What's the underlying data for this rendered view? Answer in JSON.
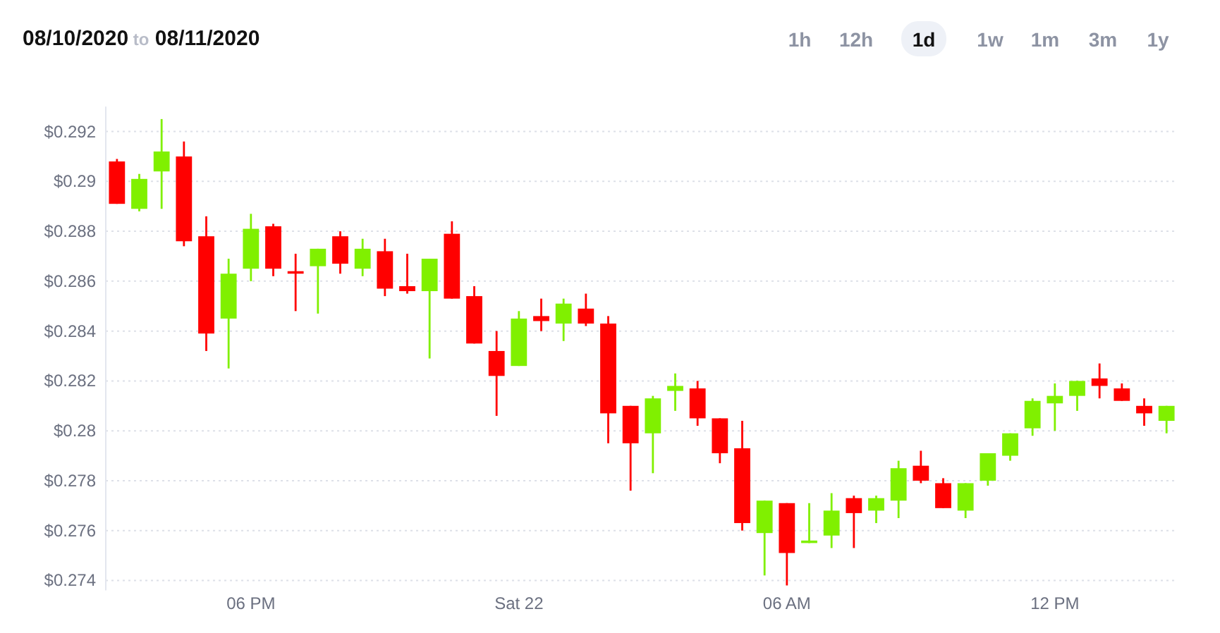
{
  "chart_data": {
    "type": "candlestick",
    "title": "08/10/2020 to 08/11/2020",
    "annotations": [
      "1h",
      "12h",
      "1d",
      "1w",
      "1m",
      "3m",
      "1y"
    ],
    "categories": [
      null,
      null,
      null,
      null,
      null,
      null,
      "06 PM",
      null,
      null,
      null,
      null,
      null,
      null,
      null,
      null,
      null,
      null,
      null,
      "Sat 22",
      null,
      null,
      null,
      null,
      null,
      null,
      null,
      null,
      null,
      null,
      null,
      "06 AM",
      null,
      null,
      null,
      null,
      null,
      null,
      null,
      null,
      null,
      null,
      null,
      "12 PM",
      null,
      null,
      null,
      null,
      null
    ],
    "ohlc": [
      [
        0.2908,
        0.2909,
        0.2891,
        0.2891
      ],
      [
        0.2889,
        0.2903,
        0.2888,
        0.2901
      ],
      [
        0.2904,
        0.2925,
        0.2889,
        0.2912
      ],
      [
        0.291,
        0.2916,
        0.2874,
        0.2876
      ],
      [
        0.2878,
        0.2886,
        0.2832,
        0.2839
      ],
      [
        0.2845,
        0.2869,
        0.2825,
        0.2863
      ],
      [
        0.2865,
        0.2887,
        0.286,
        0.2881
      ],
      [
        0.2882,
        0.2883,
        0.2862,
        0.2865
      ],
      [
        0.2864,
        0.2871,
        0.2848,
        0.2863
      ],
      [
        0.2866,
        0.2873,
        0.2847,
        0.2873
      ],
      [
        0.2878,
        0.288,
        0.2863,
        0.2867
      ],
      [
        0.2865,
        0.2877,
        0.2862,
        0.2873
      ],
      [
        0.2872,
        0.2877,
        0.2854,
        0.2857
      ],
      [
        0.2858,
        0.2871,
        0.2855,
        0.2856
      ],
      [
        0.2856,
        0.2869,
        0.2829,
        0.2869
      ],
      [
        0.2879,
        0.2884,
        0.2853,
        0.2853
      ],
      [
        0.2854,
        0.2858,
        0.2835,
        0.2835
      ],
      [
        0.2832,
        0.284,
        0.2806,
        0.2822
      ],
      [
        0.2826,
        0.2848,
        0.2826,
        0.2845
      ],
      [
        0.2846,
        0.2853,
        0.284,
        0.2844
      ],
      [
        0.2843,
        0.2853,
        0.2836,
        0.2851
      ],
      [
        0.2849,
        0.2855,
        0.2842,
        0.2843
      ],
      [
        0.2843,
        0.2846,
        0.2795,
        0.2807
      ],
      [
        0.281,
        0.281,
        0.2776,
        0.2795
      ],
      [
        0.2799,
        0.2814,
        0.2783,
        0.2813
      ],
      [
        0.2816,
        0.2823,
        0.2808,
        0.2818
      ],
      [
        0.2817,
        0.282,
        0.2802,
        0.2805
      ],
      [
        0.2805,
        0.2805,
        0.2787,
        0.2791
      ],
      [
        0.2793,
        0.2804,
        0.276,
        0.2763
      ],
      [
        0.2759,
        0.2772,
        0.2742,
        0.2772
      ],
      [
        0.2771,
        0.2771,
        0.2738,
        0.2751
      ],
      [
        0.2755,
        0.2771,
        0.2755,
        0.2756
      ],
      [
        0.2758,
        0.2775,
        0.2753,
        0.2768
      ],
      [
        0.2773,
        0.2774,
        0.2753,
        0.2767
      ],
      [
        0.2768,
        0.2774,
        0.2763,
        0.2773
      ],
      [
        0.2772,
        0.2788,
        0.2765,
        0.2785
      ],
      [
        0.2786,
        0.2792,
        0.2779,
        0.278
      ],
      [
        0.2779,
        0.2781,
        0.2769,
        0.2769
      ],
      [
        0.2768,
        0.2779,
        0.2765,
        0.2779
      ],
      [
        0.278,
        0.2791,
        0.2778,
        0.2791
      ],
      [
        0.279,
        0.2799,
        0.2788,
        0.2799
      ],
      [
        0.2801,
        0.2813,
        0.2798,
        0.2812
      ],
      [
        0.2811,
        0.2819,
        0.28,
        0.2814
      ],
      [
        0.2814,
        0.282,
        0.2808,
        0.282
      ],
      [
        0.2821,
        0.2827,
        0.2813,
        0.2818
      ],
      [
        0.2817,
        0.2819,
        0.2812,
        0.2812
      ],
      [
        0.281,
        0.2813,
        0.2802,
        0.2807
      ],
      [
        0.2804,
        0.281,
        0.2799,
        0.281
      ]
    ],
    "colors": [
      "#ff0000",
      "#80f000",
      "#80f000",
      "#ff0000",
      "#ff0000",
      "#80f000",
      "#80f000",
      "#ff0000",
      "#ff0000",
      "#80f000",
      "#ff0000",
      "#80f000",
      "#ff0000",
      "#ff0000",
      "#80f000",
      "#ff0000",
      "#ff0000",
      "#ff0000",
      "#80f000",
      "#ff0000",
      "#80f000",
      "#ff0000",
      "#ff0000",
      "#ff0000",
      "#80f000",
      "#80f000",
      "#ff0000",
      "#ff0000",
      "#ff0000",
      "#80f000",
      "#ff0000",
      "#80f000",
      "#80f000",
      "#ff0000",
      "#80f000",
      "#80f000",
      "#ff0000",
      "#ff0000",
      "#80f000",
      "#80f000",
      "#80f000",
      "#80f000",
      "#80f000",
      "#80f000",
      "#ff0000",
      "#ff0000",
      "#ff0000",
      "#80f000"
    ],
    "ylim": [
      0.2736,
      0.293
    ],
    "yticks": [
      {
        "value": 0.274,
        "label": "$0.274"
      },
      {
        "value": 0.276,
        "label": "$0.276"
      },
      {
        "value": 0.278,
        "label": "$0.278"
      },
      {
        "value": 0.28,
        "label": "$0.28"
      },
      {
        "value": 0.282,
        "label": "$0.282"
      },
      {
        "value": 0.284,
        "label": "$0.284"
      },
      {
        "value": 0.286,
        "label": "$0.286"
      },
      {
        "value": 0.288,
        "label": "$0.288"
      },
      {
        "value": 0.29,
        "label": "$0.29"
      },
      {
        "value": 0.292,
        "label": "$0.292"
      }
    ],
    "grid": "y"
  }
}
